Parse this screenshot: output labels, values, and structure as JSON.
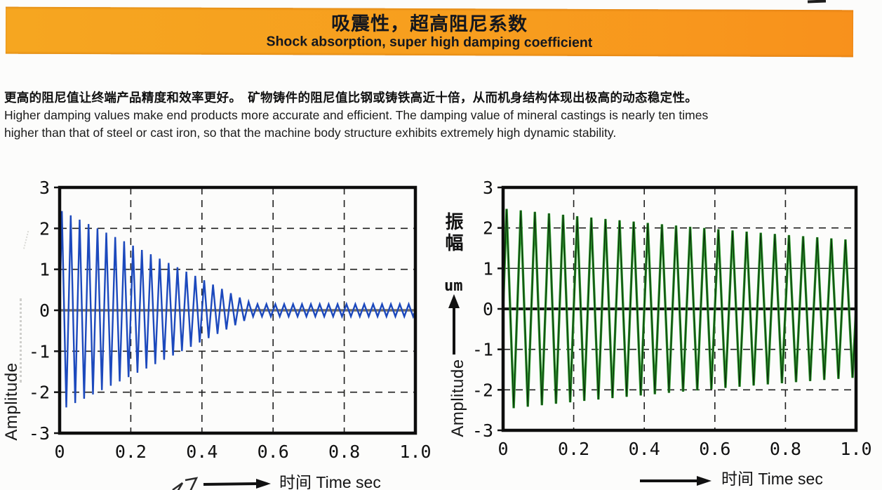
{
  "banner": {
    "title_zh": "吸震性，超高阻尼系数",
    "title_en": "Shock absorption, super high damping coefficient",
    "bg_left": "#f6a620",
    "bg_right": "#f8911c",
    "text_color": "#14171e"
  },
  "intro": {
    "zh": "更高的阻尼值让终端产品精度和效率更好。　矿物铸件的阻尼值比钢或铸铁高近十倍，从而机身结构体现出极高的动态稳定性。",
    "en_line1": "Higher damping values make end products more accurate and efficient. The damping value of mineral castings is nearly ten times",
    "en_line2": "higher than that of steel or cast iron, so that the machine body structure exhibits extremely high dynamic stability."
  },
  "chart_data": [
    {
      "id": "left-fast-damping",
      "type": "line",
      "title": "",
      "xlabel": "时间 Time sec",
      "ylabel": "Amplitude",
      "xlim": [
        0,
        1.0
      ],
      "ylim": [
        -3,
        3
      ],
      "x_ticks": [
        "0",
        "0.2",
        "0.4",
        "0.6",
        "0.8",
        "1.0"
      ],
      "y_ticks": [
        "3",
        "2",
        "1",
        "0",
        "-1",
        "-2",
        "-3"
      ],
      "grid": "dashed",
      "legend": "none",
      "line_color": "#1c49bd",
      "zero_line_color": "#6e6c66",
      "waveform": {
        "shape": "triangle-zigzag",
        "frequency_hz": 40,
        "envelope": {
          "kind": "linear_floor",
          "initial_amplitude": 2.45,
          "decay_end_time_sec": 0.58,
          "floor_amplitude": 0.15
        },
        "description": "Rapidly damped vibration: amplitude falls from about ±2.4 at t=0 to about ±0.15 by t≈0.55 s and stays near ±0.15 until 1.0 s"
      }
    },
    {
      "id": "right-slow-damping",
      "type": "line",
      "title": "",
      "xlabel": "时间 Time sec",
      "ylabel": "Amplitude",
      "ylabel_zh": "振幅",
      "ylabel_unit": "um",
      "xlim": [
        0,
        1.0
      ],
      "ylim": [
        -3,
        3
      ],
      "x_ticks": [
        "0",
        "0.2",
        "0.4",
        "0.6",
        "0.8",
        "1.0"
      ],
      "y_ticks": [
        "3",
        "2",
        "1",
        "0",
        "-1",
        "-2",
        "-3"
      ],
      "grid": "dashed",
      "grid_solid_y": [
        1
      ],
      "legend": "none",
      "line_color": "#2f9e2f",
      "line_core_color": "#0a300a",
      "zero_line_color": "#141414",
      "waveform": {
        "shape": "triangle-zigzag",
        "frequency_hz": 25,
        "envelope": {
          "kind": "exp",
          "initial_amplitude": 2.48,
          "decay_rate_per_sec": 0.38
        },
        "description": "Slowly damped vibration: amplitude decays only from about ±2.5 at t=0 to about ±1.7 at t=1.0 s"
      }
    }
  ]
}
